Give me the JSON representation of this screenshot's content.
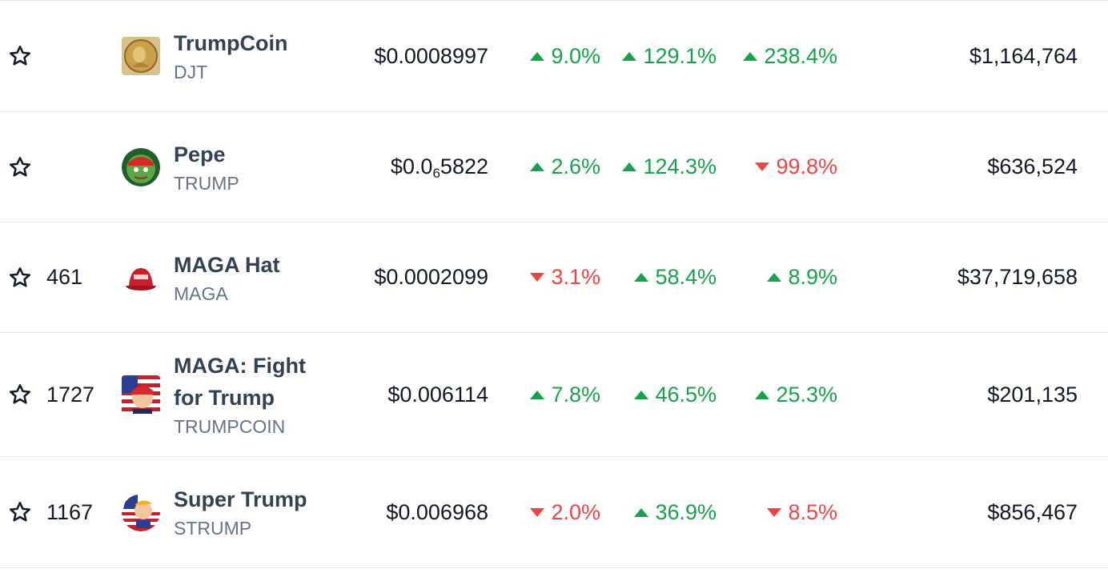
{
  "colors": {
    "up": "#16a34a",
    "down": "#ef4444",
    "name": "#334155",
    "symbol": "#64748b"
  },
  "rows": [
    {
      "rank": "",
      "name": "TrumpCoin",
      "symbol": "DJT",
      "logo": "gold-coin-portrait-icon",
      "price": "$0.0008997",
      "h1": {
        "dir": "up",
        "value": "9.0%"
      },
      "h24": {
        "dir": "up",
        "value": "129.1%"
      },
      "d7": {
        "dir": "up",
        "value": "238.4%"
      },
      "volume": "$1,164,764"
    },
    {
      "rank": "",
      "name": "Pepe",
      "symbol": "TRUMP",
      "logo": "pepe-frog-red-cap-icon",
      "price_main": "$0.0",
      "price_sub": "6",
      "price_tail": "5822",
      "h1": {
        "dir": "up",
        "value": "2.6%"
      },
      "h24": {
        "dir": "up",
        "value": "124.3%"
      },
      "d7": {
        "dir": "down",
        "value": "99.8%"
      },
      "volume": "$636,524"
    },
    {
      "rank": "461",
      "name": "MAGA Hat",
      "symbol": "MAGA",
      "logo": "red-maga-hat-icon",
      "price": "$0.0002099",
      "h1": {
        "dir": "down",
        "value": "3.1%"
      },
      "h24": {
        "dir": "up",
        "value": "58.4%"
      },
      "d7": {
        "dir": "up",
        "value": "8.9%"
      },
      "volume": "$37,719,658"
    },
    {
      "rank": "1727",
      "name_line1": "MAGA: Fight",
      "name_line2": "for Trump",
      "symbol": "TRUMPCOIN",
      "logo": "cartoon-trump-flag-icon",
      "price": "$0.006114",
      "h1": {
        "dir": "up",
        "value": "7.8%"
      },
      "h24": {
        "dir": "up",
        "value": "46.5%"
      },
      "d7": {
        "dir": "up",
        "value": "25.3%"
      },
      "volume": "$201,135"
    },
    {
      "rank": "1167",
      "name": "Super Trump",
      "symbol": "STRUMP",
      "logo": "super-trump-round-icon",
      "price": "$0.006968",
      "h1": {
        "dir": "down",
        "value": "2.0%"
      },
      "h24": {
        "dir": "up",
        "value": "36.9%"
      },
      "d7": {
        "dir": "down",
        "value": "8.5%"
      },
      "volume": "$856,467"
    }
  ]
}
